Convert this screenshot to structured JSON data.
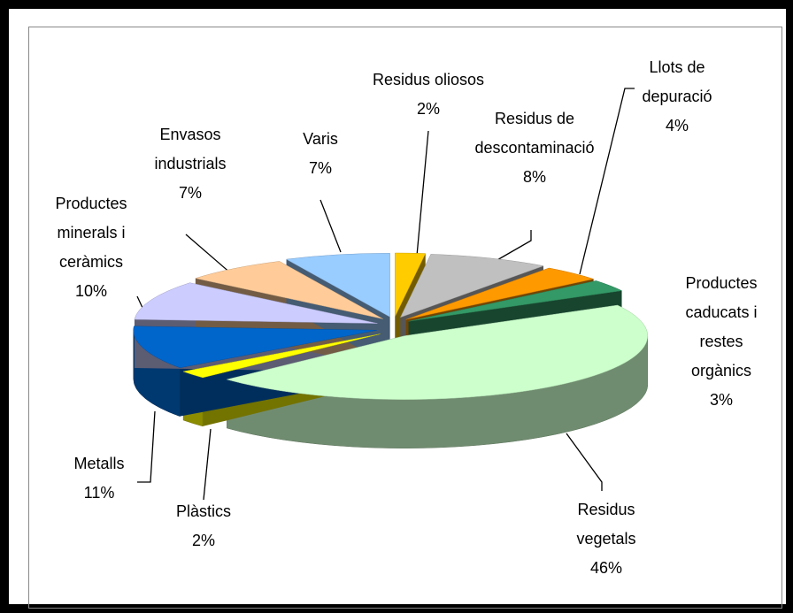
{
  "chart_data": {
    "type": "pie3d",
    "categories": [
      "Residus oliosos",
      "Residus de descontaminació",
      "Llots de depuració",
      "Productes caducats i restes orgànics",
      "Residus vegetals",
      "Plàstics",
      "Metalls",
      "Productes minerals i ceràmics",
      "Envasos industrials",
      "Varis"
    ],
    "values": [
      2,
      8,
      4,
      3,
      46,
      2,
      11,
      10,
      7,
      7
    ],
    "value_labels": [
      "2%",
      "8%",
      "4%",
      "3%",
      "46%",
      "2%",
      "11%",
      "10%",
      "7%",
      "7%"
    ],
    "colors": [
      "#ffcc00",
      "#c0c0c0",
      "#ff9900",
      "#339966",
      "#ccffcc",
      "#ffff00",
      "#0066cc",
      "#ccccff",
      "#ffcc99",
      "#99ccff"
    ]
  }
}
